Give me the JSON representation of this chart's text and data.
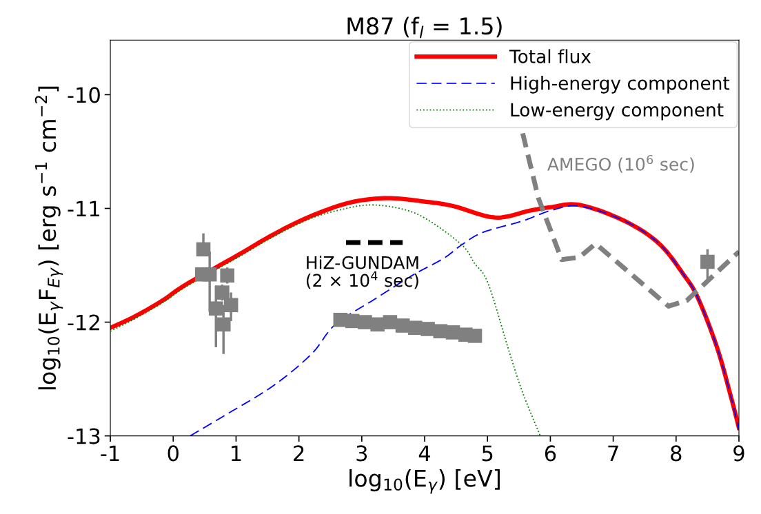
{
  "chart_data": {
    "type": "line",
    "title": "M87 (f$_{l}$ = 1.5)",
    "xlabel": "log$_{10}$(E$_{γ}$) [eV]",
    "ylabel": "log$_{10}$(E$_{γ}$F$_{Eγ}$) [erg s$^{−1}$ cm$^{−2}$]",
    "xlim": [
      -1,
      9
    ],
    "ylim": [
      -13,
      -9.52
    ],
    "xticks": [
      -1,
      0,
      1,
      2,
      3,
      4,
      5,
      6,
      7,
      8,
      9
    ],
    "yticks": [
      -13,
      -12,
      -11,
      -10
    ],
    "grid": false,
    "legend": "top right",
    "series": [
      {
        "name": "Total flux",
        "line_style": "solid",
        "color": "#ff0000",
        "x": [
          -1,
          -0.61,
          -0.17,
          0.2,
          1.0,
          1.59,
          2.14,
          2.8,
          3.41,
          4.0,
          4.46,
          5.12,
          5.67,
          6.0,
          6.47,
          7.18,
          7.73,
          8.13,
          8.35,
          8.65,
          8.87,
          9.0
        ],
        "values": [
          -12.05,
          -11.95,
          -11.81,
          -11.67,
          -11.42,
          -11.23,
          -11.08,
          -10.95,
          -10.91,
          -10.94,
          -10.98,
          -11.08,
          -11.02,
          -10.99,
          -10.97,
          -11.11,
          -11.31,
          -11.59,
          -11.79,
          -12.22,
          -12.65,
          -12.93
        ]
      },
      {
        "name": "High-energy component",
        "line_style": "dashed",
        "color": "#0000ff",
        "x": [
          0.27,
          0.82,
          1.59,
          2.2,
          2.58,
          3.2,
          3.8,
          4.3,
          4.59,
          4.93,
          5.56,
          6.0,
          6.47,
          7.18,
          7.73,
          8.13,
          8.35,
          8.65,
          8.87,
          9.0
        ],
        "values": [
          -13.0,
          -12.82,
          -12.56,
          -12.28,
          -12.02,
          -11.8,
          -11.59,
          -11.44,
          -11.32,
          -11.21,
          -11.11,
          -11.02,
          -10.98,
          -11.11,
          -11.31,
          -11.59,
          -11.79,
          -12.22,
          -12.65,
          -12.95
        ]
      },
      {
        "name": "Low-energy component",
        "line_style": "dotted",
        "color": "#008000",
        "x": [
          -1,
          -0.61,
          -0.17,
          0.2,
          1.0,
          1.59,
          2.14,
          2.6,
          3.1,
          3.6,
          4.02,
          4.59,
          4.79,
          5.01,
          5.34,
          5.56,
          5.84
        ],
        "values": [
          -12.08,
          -11.97,
          -11.83,
          -11.69,
          -11.44,
          -11.25,
          -11.1,
          -11.02,
          -10.97,
          -11.0,
          -11.09,
          -11.32,
          -11.48,
          -11.66,
          -12.25,
          -12.62,
          -13.0
        ]
      },
      {
        "line_style": "dashed",
        "color": "#808080",
        "x": [
          5.56,
          5.81,
          6.18,
          6.46,
          6.72,
          7.88,
          8.17,
          9.0
        ],
        "values": [
          -10.34,
          -10.91,
          -11.45,
          -11.43,
          -11.31,
          -11.86,
          -11.81,
          -11.38
        ]
      },
      {
        "line_style": "dashed",
        "color": "#000000",
        "x": [
          2.75,
          3.65
        ],
        "values": [
          -11.3,
          -11.3
        ]
      },
      {
        "type": "scatter",
        "marker": "square",
        "color": "#808080",
        "x": [
          0.48,
          0.46,
          0.58,
          0.86,
          0.78,
          0.68,
          0.92,
          0.8,
          8.5
        ],
        "values": [
          -11.36,
          -11.58,
          -11.58,
          -11.59,
          -11.74,
          -11.88,
          -11.85,
          -12.02,
          -11.47
        ],
        "errors": [
          [
            -11.36,
            -11.23
          ],
          null,
          [
            -11.9,
            -11.39
          ],
          [
            -11.65,
            -11.53
          ],
          [
            -11.8,
            -11.68
          ],
          [
            -12.21,
            -11.69
          ],
          [
            -11.98,
            -11.75
          ],
          [
            -12.27,
            -11.86
          ],
          [
            -11.63,
            -11.37
          ]
        ]
      },
      {
        "type": "scatter",
        "marker": "square",
        "color": "#808080",
        "x": [
          2.66,
          2.85,
          3.05,
          3.25,
          3.45,
          3.65,
          3.85,
          4.05,
          4.25,
          4.45,
          4.65,
          4.8
        ],
        "values": [
          -11.98,
          -11.99,
          -12.0,
          -12.02,
          -12.0,
          -12.03,
          -12.05,
          -12.06,
          -12.08,
          -12.09,
          -12.11,
          -12.12
        ]
      }
    ],
    "annotations": [
      "HiZ-GUNDAM\n(2 × 10$^{4}$ sec)",
      "AMEGO (10$^{6}$ sec)"
    ]
  }
}
